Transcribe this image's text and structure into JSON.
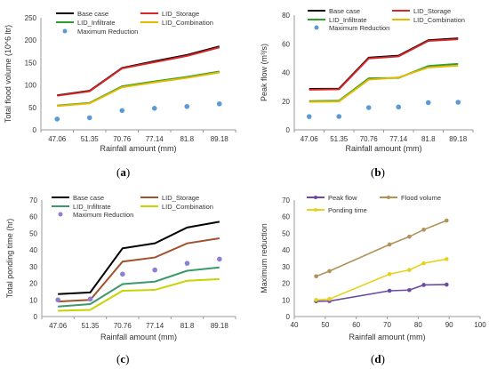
{
  "chart_data": [
    {
      "type": "line",
      "panel_label": "a",
      "categories": [
        "47.06",
        "51.35",
        "70.76",
        "77.14",
        "81.8",
        "89.18"
      ],
      "xlabel": "Rainfall amount (mm)",
      "ylabel": "Total flood volume (10^6 ltr)",
      "ylim": [
        0,
        250
      ],
      "yticks": [
        "0",
        "50",
        "100",
        "150",
        "200",
        "250"
      ],
      "grid": false,
      "legend_position": "top",
      "series": [
        {
          "name": "Base case",
          "style": "line",
          "color": "#000000",
          "values": [
            77,
            87,
            138,
            153,
            167,
            186
          ]
        },
        {
          "name": "LID_Storage",
          "style": "line",
          "color": "#d62728",
          "values": [
            76,
            86,
            137,
            151,
            165,
            184
          ]
        },
        {
          "name": "LID_Infiltrate",
          "style": "line",
          "color": "#2ca02c",
          "values": [
            54,
            60,
            97,
            108,
            118,
            130
          ]
        },
        {
          "name": "LID_Combination",
          "style": "line",
          "color": "#e6b800",
          "values": [
            53,
            59,
            95,
            106,
            116,
            128
          ]
        },
        {
          "name": "Maximum Reduction",
          "style": "markers",
          "color": "#5b9bd5",
          "values": [
            24,
            27,
            43,
            48,
            52,
            58
          ]
        }
      ]
    },
    {
      "type": "line",
      "panel_label": "b",
      "categories": [
        "47.06",
        "51.35",
        "70.76",
        "77.14",
        "81.8",
        "89.18"
      ],
      "xlabel": "Rainfall amount (mm)",
      "ylabel": "Peak flow (m³/s)",
      "ylim": [
        0,
        80
      ],
      "yticks": [
        "0",
        "20",
        "40",
        "60",
        "80"
      ],
      "grid": false,
      "legend_position": "top",
      "series": [
        {
          "name": "Base case",
          "style": "line",
          "color": "#000000",
          "values": [
            28.5,
            28.7,
            50.3,
            51.7,
            62.5,
            63.8
          ]
        },
        {
          "name": "LID_Storage",
          "style": "line",
          "color": "#d62728",
          "values": [
            28.0,
            28.3,
            49.8,
            51.2,
            62.0,
            63.2
          ]
        },
        {
          "name": "LID_Infiltrate",
          "style": "line",
          "color": "#2ca02c",
          "values": [
            20.0,
            20.3,
            35.9,
            36.2,
            44.5,
            46.0
          ]
        },
        {
          "name": "LID_Combination",
          "style": "line",
          "color": "#e6b800",
          "values": [
            19.5,
            19.8,
            35.0,
            36.5,
            43.5,
            44.8
          ]
        },
        {
          "name": "Maximum Reduction",
          "style": "markers",
          "color": "#5b9bd5",
          "values": [
            9.2,
            9.3,
            15.5,
            15.9,
            19.0,
            19.2
          ]
        }
      ]
    },
    {
      "type": "line",
      "panel_label": "c",
      "categories": [
        "47.06",
        "51.35",
        "70.76",
        "77.14",
        "81.8",
        "89.18"
      ],
      "xlabel": "Rainfall amount (mm)",
      "ylabel": "Total ponding time (hr)",
      "ylim": [
        0,
        70
      ],
      "yticks": [
        "0",
        "10",
        "20",
        "30",
        "40",
        "50",
        "60",
        "70"
      ],
      "grid": false,
      "legend_position": "top",
      "series": [
        {
          "name": "Base case",
          "style": "line",
          "color": "#000000",
          "values": [
            13.5,
            14.5,
            41,
            44,
            53.5,
            57
          ]
        },
        {
          "name": "LID_Storage",
          "style": "line",
          "color": "#a0522d",
          "values": [
            9,
            10,
            33,
            35.5,
            44,
            47
          ]
        },
        {
          "name": "LID_Infiltrate",
          "style": "line",
          "color": "#3a9a6a",
          "values": [
            6,
            7.5,
            19.5,
            21,
            27.5,
            29.5
          ]
        },
        {
          "name": "LID_Combination",
          "style": "line",
          "color": "#c8d400",
          "values": [
            3.5,
            4,
            15.5,
            16,
            21.5,
            22.5
          ]
        },
        {
          "name": "Maximum Reduction",
          "style": "markers",
          "color": "#8b7fd6",
          "values": [
            10,
            10.5,
            25.5,
            28,
            32,
            34.5
          ]
        }
      ]
    },
    {
      "type": "line",
      "panel_label": "d",
      "x": [
        47.06,
        51.35,
        70.76,
        77.14,
        81.8,
        89.18
      ],
      "xlabel": "Rainfall amount (mm)",
      "ylabel": "Maximum reduction",
      "xlim": [
        40,
        100
      ],
      "xticks": [
        "40",
        "50",
        "60",
        "70",
        "80",
        "90",
        "100"
      ],
      "ylim": [
        0,
        70
      ],
      "yticks": [
        "0",
        "10",
        "20",
        "30",
        "40",
        "50",
        "60",
        "70"
      ],
      "grid": false,
      "legend_position": "top",
      "series": [
        {
          "name": "Peak flow",
          "style": "line-markers",
          "color": "#6a4aa5",
          "values": [
            9.2,
            9.3,
            15.5,
            15.9,
            19.0,
            19.2
          ]
        },
        {
          "name": "Flood volume",
          "style": "line-markers",
          "color": "#b0925a",
          "values": [
            24.2,
            27.3,
            43.3,
            48,
            52.2,
            57.7
          ]
        },
        {
          "name": "Ponding time",
          "style": "line-markers",
          "color": "#e6d21e",
          "values": [
            10,
            10.5,
            25.5,
            28,
            32,
            34.5
          ]
        }
      ]
    }
  ]
}
